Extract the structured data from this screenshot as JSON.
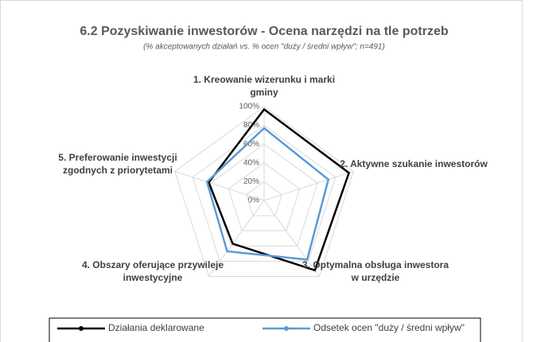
{
  "chart_data": {
    "type": "radar",
    "title": "6.2 Pozyskiwanie inwestorów - Ocena narzędzi na tle potrzeb",
    "subtitle": "(% akceptowanych działań vs. % ocen \"duży / średni wpływ\"; n=491)",
    "categories": [
      "1. Kreowanie wizerunku i marki gminy",
      "2. Aktywne szukanie inwestorów",
      "3. Optymalna obsługa inwestora w urzędzie",
      "4. Obszary oferujące przywileje inwestycyjne",
      "5. Preferowanie inwestycji zgodnych z priorytetami"
    ],
    "series": [
      {
        "name": "Działania deklarowane",
        "color": "#000000",
        "values": [
          97,
          95,
          92,
          57,
          62
        ]
      },
      {
        "name": "Odsetek ocen \"duży / średni wpływ\"",
        "color": "#5b9bd5",
        "values": [
          77,
          72,
          78,
          67,
          64
        ]
      }
    ],
    "ylim": [
      0,
      100
    ],
    "yticks": [
      {
        "value": 0,
        "label": "0%"
      },
      {
        "value": 20,
        "label": "20%"
      },
      {
        "value": 40,
        "label": "40%"
      },
      {
        "value": 60,
        "label": "60%"
      },
      {
        "value": 80,
        "label": "80%"
      },
      {
        "value": 100,
        "label": "100%"
      }
    ],
    "grid": true,
    "legend": "bottom"
  }
}
